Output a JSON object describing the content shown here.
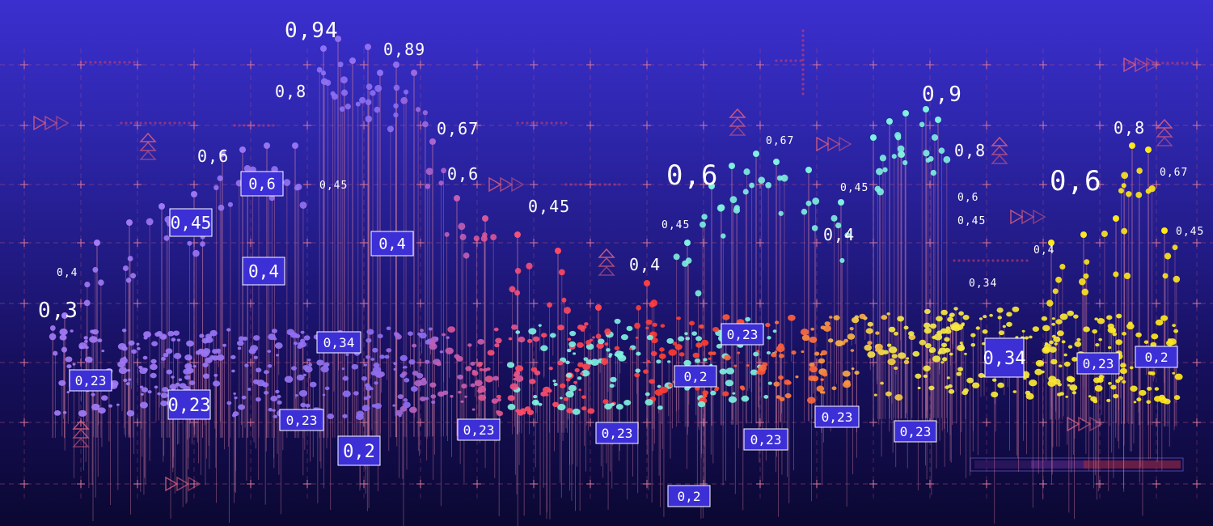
{
  "chart_data": {
    "type": "scatter",
    "title": "",
    "xlabel": "",
    "ylabel": "",
    "grid": true,
    "legend": "none",
    "colors": {
      "background_top": "#3b2fcf",
      "background_bottom": "#0b0832",
      "grid": "#c0557a",
      "stems": "#c7759a",
      "box_fill": "#3d2fd6",
      "box_stroke": "#ffffff",
      "gradient_stops": [
        "#a57cf5",
        "#8b6ef2",
        "#ff4d6d",
        "#ff3b2f",
        "#ff6a3d",
        "#f5e94a",
        "#ffe81a",
        "#7ff0e0"
      ]
    },
    "floating_labels": [
      {
        "text": "0,94",
        "size": "large"
      },
      {
        "text": "0,89",
        "size": "medium"
      },
      {
        "text": "0,8",
        "size": "medium"
      },
      {
        "text": "0,67",
        "size": "medium"
      },
      {
        "text": "0,6",
        "size": "medium"
      },
      {
        "text": "0,6",
        "size": "medium"
      },
      {
        "text": "0,45",
        "size": "small"
      },
      {
        "text": "0,45",
        "size": "medium"
      },
      {
        "text": "0,4",
        "size": "small"
      },
      {
        "text": "0,3",
        "size": "large"
      },
      {
        "text": "0,4",
        "size": "medium"
      },
      {
        "text": "0,6",
        "size": "xlarge"
      },
      {
        "text": "0,67",
        "size": "small"
      },
      {
        "text": "0,45",
        "size": "small"
      },
      {
        "text": "0,45",
        "size": "small"
      },
      {
        "text": "0,4",
        "size": "medium"
      },
      {
        "text": "0,9",
        "size": "large"
      },
      {
        "text": "0,8",
        "size": "medium"
      },
      {
        "text": "0,6",
        "size": "small"
      },
      {
        "text": "0,45",
        "size": "small"
      },
      {
        "text": "0,34",
        "size": "small"
      },
      {
        "text": "0,8",
        "size": "medium"
      },
      {
        "text": "0,6",
        "size": "xlarge"
      },
      {
        "text": "0,67",
        "size": "small"
      },
      {
        "text": "0,45",
        "size": "small"
      },
      {
        "text": "0,4",
        "size": "small"
      }
    ],
    "boxed_labels": [
      {
        "text": "0,6"
      },
      {
        "text": "0,45"
      },
      {
        "text": "0,4"
      },
      {
        "text": "0,4"
      },
      {
        "text": "0,34"
      },
      {
        "text": "0,23"
      },
      {
        "text": "0,23"
      },
      {
        "text": "0,23"
      },
      {
        "text": "0,2"
      },
      {
        "text": "0,23"
      },
      {
        "text": "0,23"
      },
      {
        "text": "0,2"
      },
      {
        "text": "0,2"
      },
      {
        "text": "0,23"
      },
      {
        "text": "0,23"
      },
      {
        "text": "0,23"
      },
      {
        "text": "0,23"
      },
      {
        "text": "0,34"
      },
      {
        "text": "0,23"
      },
      {
        "text": "0,2"
      },
      {
        "text": "0,23"
      }
    ],
    "series": [
      {
        "color": "#a57cf5",
        "x": [
          0.08,
          0.12,
          0.16,
          0.2,
          0.24,
          0.28,
          0.32,
          0.36,
          0.4,
          0.44
        ],
        "y": [
          0.3,
          0.4,
          0.45,
          0.6,
          0.6,
          0.94,
          0.89,
          0.67,
          0.6,
          0.45
        ]
      },
      {
        "color": "#ff3b2f",
        "x": [
          0.46,
          0.5,
          0.54,
          0.58,
          0.62
        ],
        "y": [
          0.4,
          0.34,
          0.4,
          0.45,
          0.4
        ]
      },
      {
        "color": "#7ff0e0",
        "x": [
          0.55,
          0.6,
          0.65,
          0.7,
          0.75
        ],
        "y": [
          0.6,
          0.67,
          0.45,
          0.9,
          0.8
        ]
      },
      {
        "color": "#ffe81a",
        "x": [
          0.82,
          0.86,
          0.9,
          0.94,
          0.97
        ],
        "y": [
          0.4,
          0.45,
          0.6,
          0.8,
          0.67
        ]
      }
    ]
  }
}
